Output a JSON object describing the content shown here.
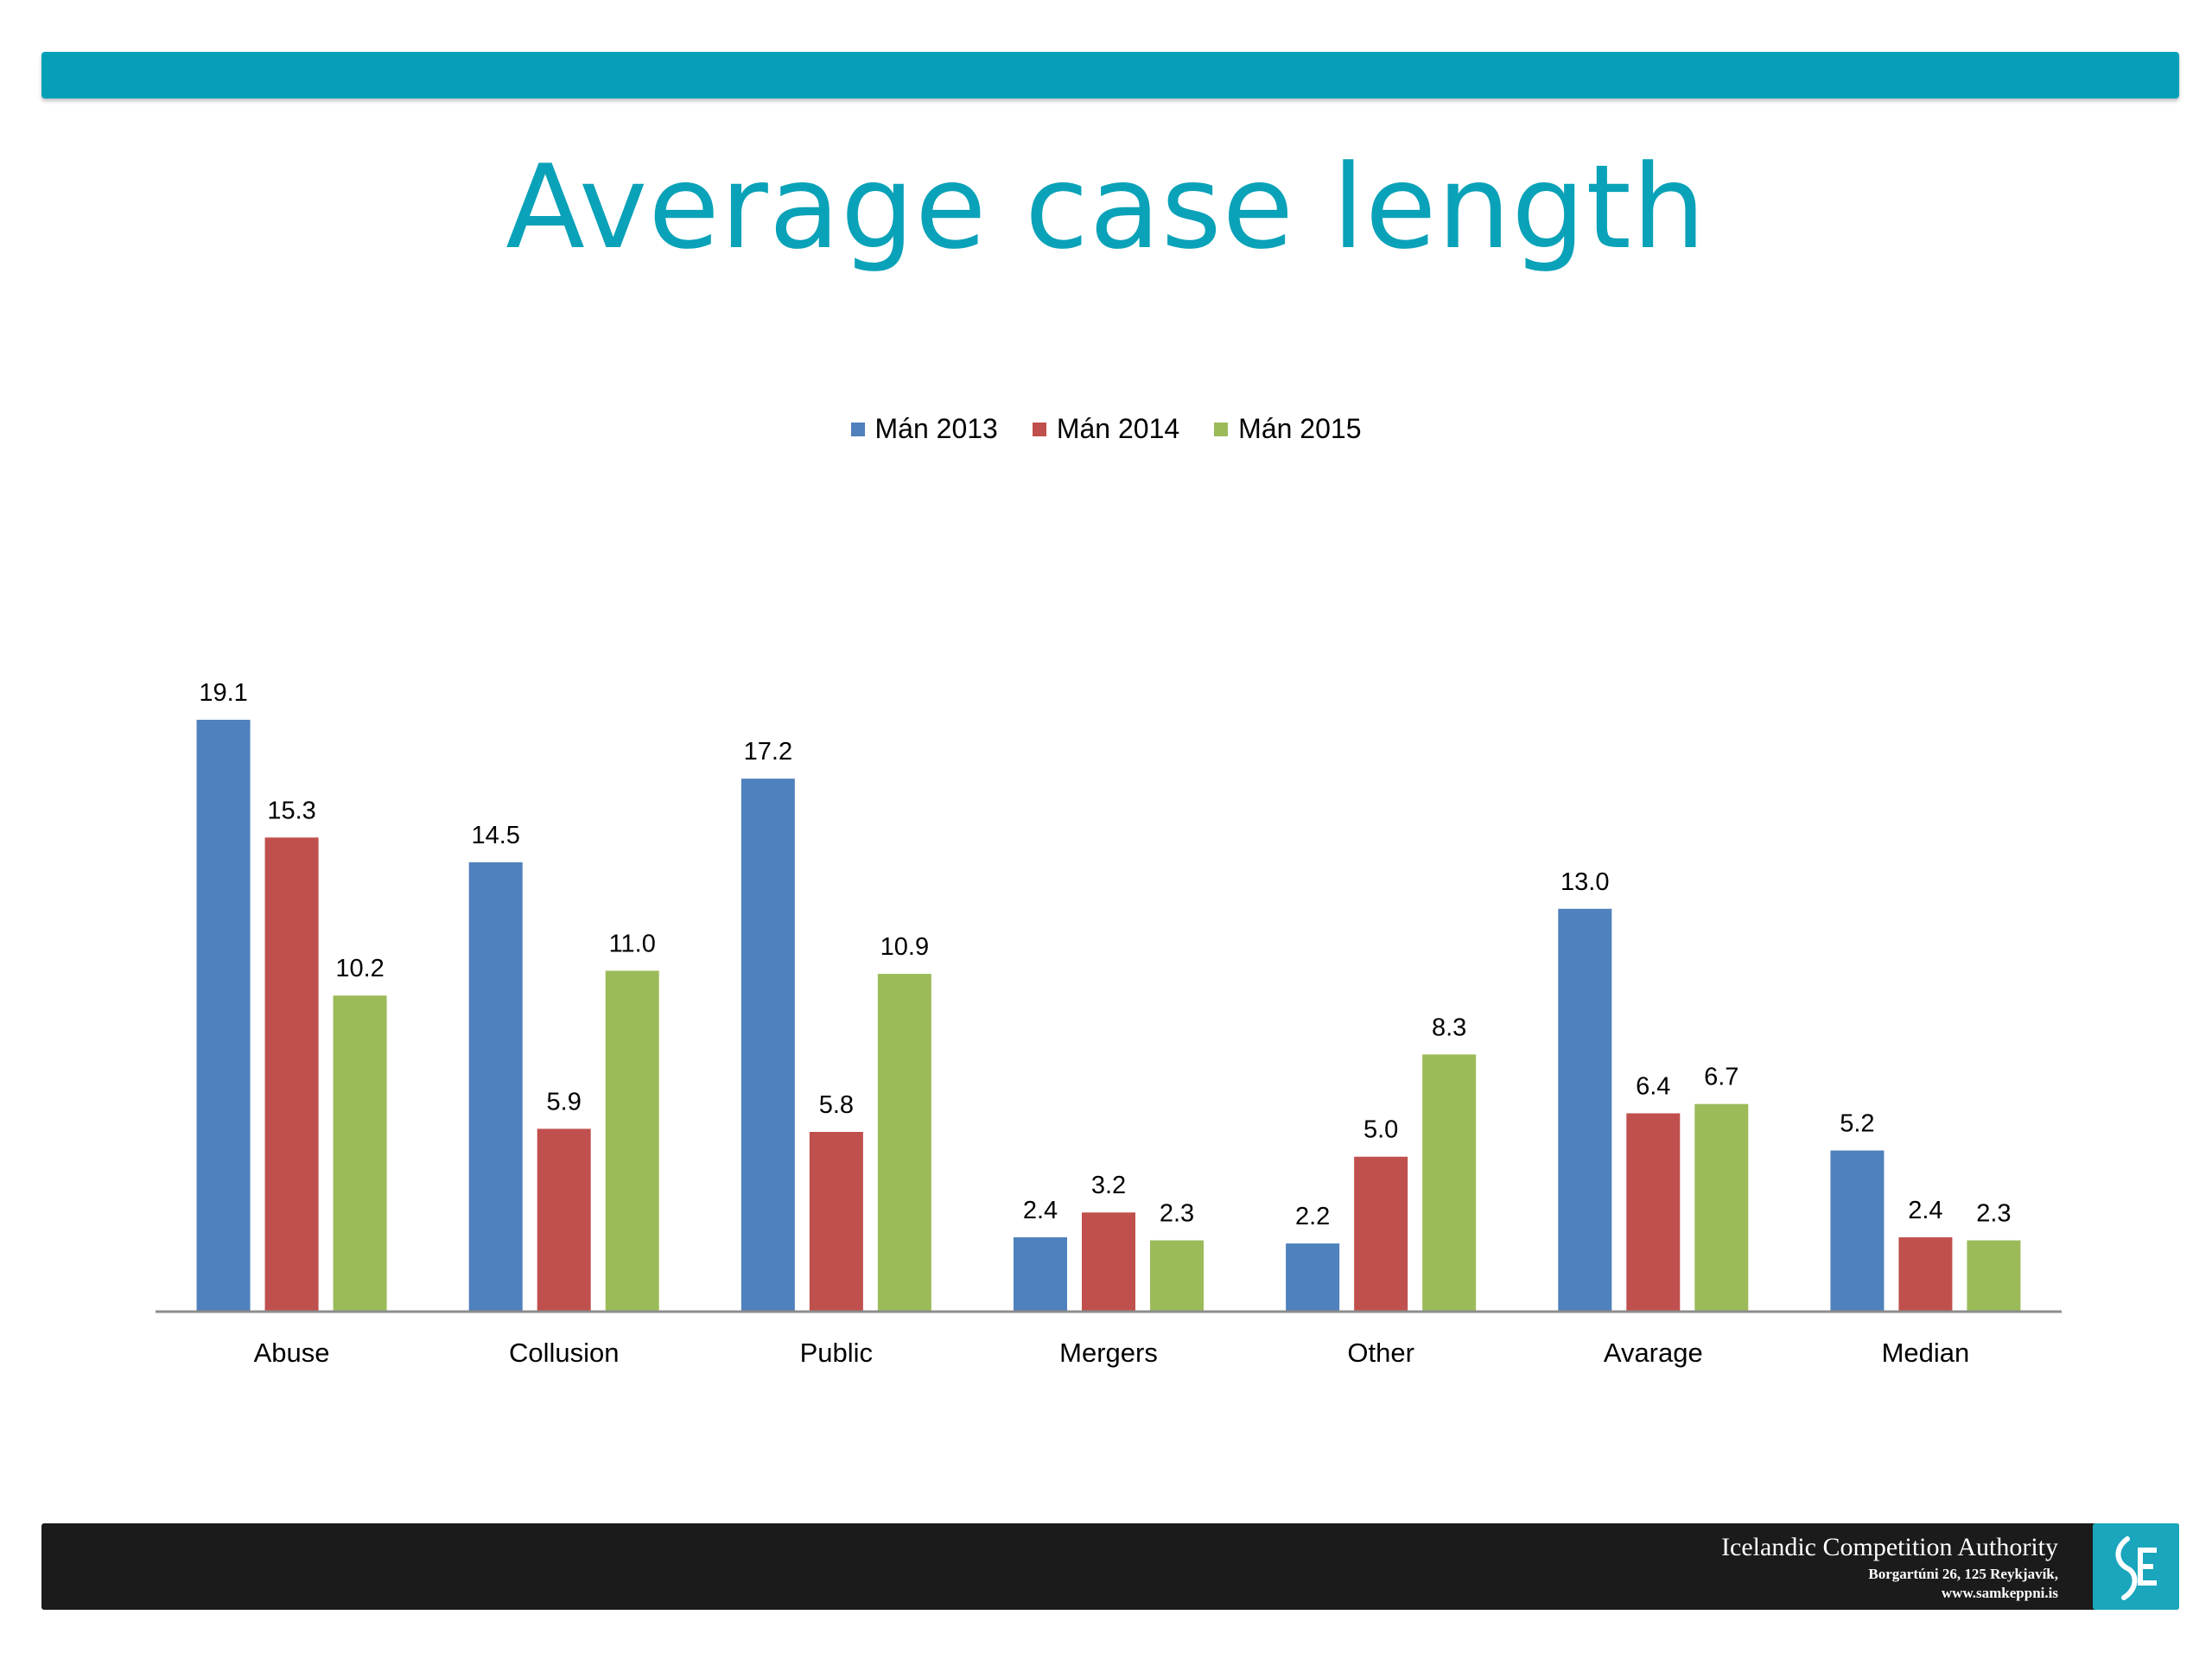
{
  "slide": {
    "title": "Average case length"
  },
  "footer": {
    "org_name": "Icelandic Competition Authority",
    "address": "Borgartúni 26, 125 Reykjavík,",
    "website": "www.samkeppni.is",
    "logo_icon": "samkeppni-logo-icon"
  },
  "colors": {
    "accent": "#05a0b8",
    "series": [
      "#4f81bd",
      "#c0504d",
      "#9bbb59"
    ]
  },
  "chart_data": {
    "type": "bar",
    "title": "",
    "xlabel": "",
    "ylabel": "",
    "ylim": [
      0,
      19.1
    ],
    "grid": false,
    "legend_position": "top",
    "categories": [
      "Abuse",
      "Collusion",
      "Public",
      "Mergers",
      "Other",
      "Avarage",
      "Median"
    ],
    "series": [
      {
        "name": "Mán 2013",
        "values": [
          19.1,
          14.5,
          17.2,
          2.4,
          2.2,
          13.0,
          5.2
        ]
      },
      {
        "name": "Mán 2014",
        "values": [
          15.3,
          5.9,
          5.8,
          3.2,
          5.0,
          6.4,
          2.4
        ]
      },
      {
        "name": "Mán 2015",
        "values": [
          10.2,
          11.0,
          10.9,
          2.3,
          8.3,
          6.7,
          2.3
        ]
      }
    ],
    "value_labels": [
      [
        "19.1",
        "14.5",
        "17.2",
        "2.4",
        "2.2",
        "13.0",
        "5.2"
      ],
      [
        "15.3",
        "5.9",
        "5.8",
        "3.2",
        "5.0",
        "6.4",
        "2.4"
      ],
      [
        "10.2",
        "11.0",
        "10.9",
        "2.3",
        "8.3",
        "6.7",
        "2.3"
      ]
    ]
  }
}
